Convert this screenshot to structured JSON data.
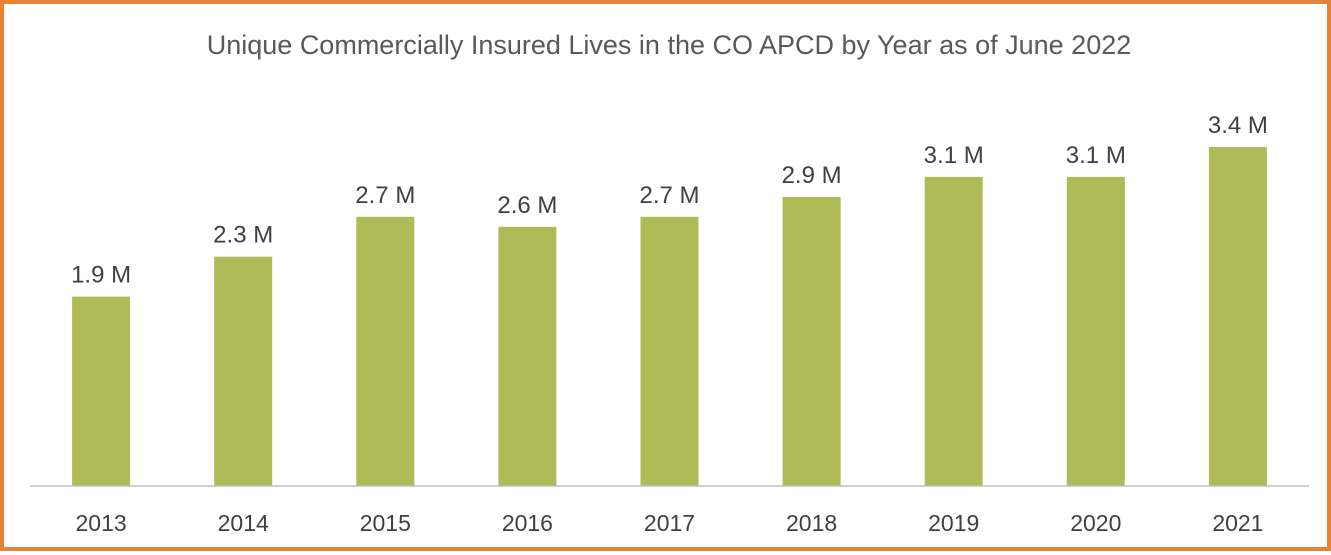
{
  "chart_data": {
    "type": "bar",
    "title": "Unique Commercially Insured Lives in the CO APCD by Year as of June 2022",
    "xlabel": "",
    "ylabel": "",
    "categories": [
      "2013",
      "2014",
      "2015",
      "2016",
      "2017",
      "2018",
      "2019",
      "2020",
      "2021"
    ],
    "values": [
      1.9,
      2.3,
      2.7,
      2.6,
      2.7,
      2.9,
      3.1,
      3.1,
      3.4
    ],
    "data_labels": [
      "1.9 M",
      "2.3 M",
      "2.7 M",
      "2.6 M",
      "2.7 M",
      "2.9 M",
      "3.1 M",
      "3.1 M",
      "3.4 M"
    ],
    "unit": "M",
    "ylim": [
      0,
      3.4
    ],
    "grid": false,
    "legend": "none",
    "bar_color": "#AFBB57",
    "border_color": "#E58437",
    "axis_color": "#BFBFBF"
  }
}
